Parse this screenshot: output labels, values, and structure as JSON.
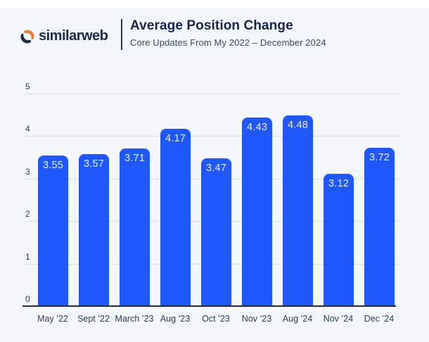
{
  "header": {
    "brand": "similarweb",
    "title": "Average Position Change",
    "subtitle": "Core Updates From My 2022 – December 2024"
  },
  "colors": {
    "background": "#f3f6fa",
    "bar": "#2057fa",
    "axis": "#1c2b49",
    "gridline": "#d7dde4",
    "brand_navy": "#1c2b49",
    "brand_orange": "#e8823c",
    "bar_value_text": "#eaf0ff"
  },
  "chart_data": {
    "type": "bar",
    "title": "Average Position Change",
    "subtitle": "Core Updates From My 2022 – December 2024",
    "categories": [
      "May ’22",
      "Sept ’22",
      "March ’23",
      "Aug ’23",
      "Oct ’23",
      "Nov ’23",
      "Aug ’24",
      "Nov ’24",
      "Dec ’24"
    ],
    "values": [
      3.55,
      3.57,
      3.71,
      4.17,
      3.47,
      4.43,
      4.48,
      3.12,
      3.72
    ],
    "value_labels": [
      "3.55",
      "3.57",
      "3.71",
      "4.17",
      "3.47",
      "4.43",
      "4.48",
      "3.12",
      "3.72"
    ],
    "xlabel": "",
    "ylabel": "",
    "ylim": [
      0,
      5
    ],
    "yticks": [
      "0",
      "1",
      "2",
      "3",
      "4",
      "5"
    ],
    "grid": true,
    "legend": false,
    "bar_color": "#2057fa"
  }
}
